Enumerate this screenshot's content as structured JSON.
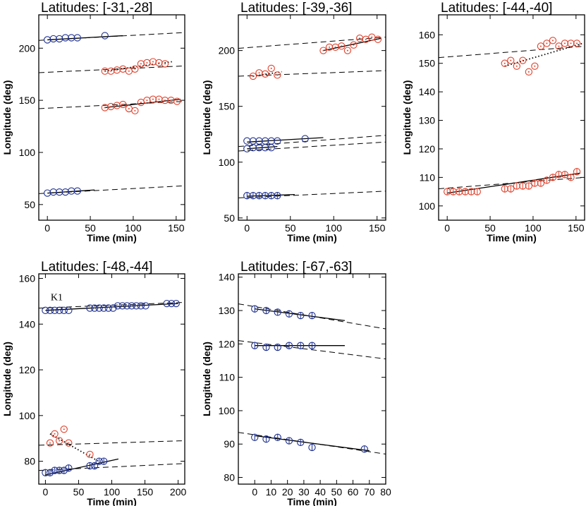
{
  "figure": {
    "colors": {
      "blue": "#1d2f8f",
      "red": "#e0402a",
      "axis": "#000000"
    }
  },
  "chart_data": [
    {
      "type": "scatter",
      "title": "Latitudes: [-31,-28]",
      "xlabel": "Time (min)",
      "ylabel": "Longitude (deg)",
      "xlim": [
        -10,
        160
      ],
      "ylim": [
        35,
        232
      ],
      "xticks": [
        0,
        50,
        100,
        150
      ],
      "yticks": [
        50,
        100,
        150,
        200
      ],
      "annotations": [],
      "series": [
        {
          "name": "track-1",
          "color": "blue",
          "symbol": "circle",
          "errorbars": false,
          "x": [
            0,
            7,
            14,
            21,
            28,
            35,
            67
          ],
          "y": [
            208,
            209,
            209,
            210,
            210,
            210,
            212
          ],
          "fit": {
            "x": [
              0,
              88
            ],
            "y": [
              208,
              212
            ],
            "style": "solid"
          },
          "trend": {
            "x": [
              -10,
              160
            ],
            "y": [
              207.5,
              215
            ],
            "style": "dashed"
          }
        },
        {
          "name": "track-2",
          "color": "red",
          "symbol": "dot-circle",
          "errorbars": false,
          "x": [
            67,
            74,
            81,
            88,
            95,
            102,
            109,
            116,
            123,
            130,
            137
          ],
          "y": [
            178,
            178,
            179,
            180,
            178,
            180,
            185,
            186,
            187,
            186,
            185
          ],
          "fit": {
            "x": [
              67,
              145
            ],
            "y": [
              178,
              187
            ],
            "style": "dotted"
          },
          "trend": {
            "x": [
              -10,
              160
            ],
            "y": [
              176.5,
              183
            ],
            "style": "dashed"
          }
        },
        {
          "name": "track-3",
          "color": "red",
          "symbol": "dot-circle",
          "errorbars": false,
          "x": [
            67,
            74,
            81,
            88,
            95,
            102,
            109,
            116,
            123,
            130,
            137,
            144,
            151
          ],
          "y": [
            143,
            144,
            145,
            146,
            142,
            140,
            148,
            150,
            151,
            151,
            150,
            150,
            149
          ],
          "fit": {
            "x": [
              67,
              155
            ],
            "y": [
              143,
              151
            ],
            "style": "solid"
          },
          "trend": {
            "x": [
              -10,
              160
            ],
            "y": [
              142,
              149
            ],
            "style": "dashed"
          }
        },
        {
          "name": "track-4",
          "color": "blue",
          "symbol": "circle",
          "errorbars": false,
          "x": [
            0,
            7,
            14,
            21,
            28,
            35
          ],
          "y": [
            61,
            62,
            62,
            62,
            63,
            63
          ],
          "fit": {
            "x": [
              0,
              55
            ],
            "y": [
              61,
              64
            ],
            "style": "solid"
          },
          "trend": {
            "x": [
              -10,
              160
            ],
            "y": [
              60.5,
              68
            ],
            "style": "dashed"
          }
        }
      ]
    },
    {
      "type": "scatter",
      "title": "Latitudes: [-39,-36]",
      "xlabel": "Time (min)",
      "ylabel": "Longitude (deg)",
      "xlim": [
        -10,
        160
      ],
      "ylim": [
        48,
        232
      ],
      "xticks": [
        0,
        50,
        100,
        150
      ],
      "yticks": [
        50,
        100,
        150,
        200
      ],
      "annotations": [],
      "series": [
        {
          "name": "track-1",
          "color": "red",
          "symbol": "dot-circle",
          "errorbars": false,
          "x": [
            88,
            95,
            102,
            109,
            116,
            123,
            130,
            137,
            144,
            151
          ],
          "y": [
            200,
            203,
            203,
            204,
            200,
            205,
            211,
            210,
            212,
            210
          ],
          "fit": {
            "x": [
              88,
              155
            ],
            "y": [
              200,
              211
            ],
            "style": "solid"
          },
          "trend": {
            "x": [
              -10,
              160
            ],
            "y": [
              202,
              212
            ],
            "style": "dashed"
          }
        },
        {
          "name": "track-2",
          "color": "red",
          "symbol": "dot-circle",
          "errorbars": false,
          "x": [
            7,
            14,
            21,
            28,
            35
          ],
          "y": [
            177,
            180,
            179,
            184,
            178
          ],
          "fit": {
            "x": [
              7,
              40
            ],
            "y": [
              177,
              181
            ],
            "style": "dotted"
          },
          "trend": {
            "x": [
              -10,
              160
            ],
            "y": [
              177,
              182
            ],
            "style": "dashed"
          }
        },
        {
          "name": "track-3",
          "color": "blue",
          "symbol": "circle",
          "errorbars": false,
          "x": [
            0,
            7,
            14,
            21,
            28,
            35,
            67
          ],
          "y": [
            119,
            119,
            119,
            119,
            119,
            119,
            121
          ],
          "fit": {
            "x": [
              0,
              88
            ],
            "y": [
              118,
              122
            ],
            "style": "solid"
          },
          "trend": {
            "x": [
              -10,
              160
            ],
            "y": [
              114,
              124
            ],
            "style": "dashed"
          }
        },
        {
          "name": "track-4",
          "color": "blue",
          "symbol": "circle",
          "errorbars": false,
          "x": [
            0,
            7,
            14,
            21,
            28
          ],
          "y": [
            112,
            113,
            113,
            113,
            113
          ],
          "fit": {
            "x": [
              0,
              35
            ],
            "y": [
              112,
              114
            ],
            "style": "solid"
          },
          "trend": {
            "x": [
              -10,
              160
            ],
            "y": [
              110,
              118
            ],
            "style": "dashed"
          }
        },
        {
          "name": "track-5",
          "color": "blue",
          "symbol": "circle",
          "errorbars": true,
          "x": [
            0,
            7,
            14,
            21,
            28,
            35
          ],
          "y": [
            70,
            70,
            70,
            70,
            70,
            70
          ],
          "fit": {
            "x": [
              0,
              55
            ],
            "y": [
              69.5,
              71
            ],
            "style": "solid"
          },
          "trend": {
            "x": [
              -10,
              160
            ],
            "y": [
              68,
              74
            ],
            "style": "dashed"
          }
        }
      ]
    },
    {
      "type": "scatter",
      "title": "Latitudes: [-44,-40]",
      "xlabel": "Time (min)",
      "ylabel": "Longitude (deg)",
      "xlim": [
        -10,
        160
      ],
      "ylim": [
        95,
        167
      ],
      "xticks": [
        0,
        50,
        100,
        150
      ],
      "yticks": [
        100,
        110,
        120,
        130,
        140,
        150,
        160
      ],
      "annotations": [],
      "series": [
        {
          "name": "track-1",
          "color": "red",
          "symbol": "dot-circle",
          "errorbars": false,
          "x": [
            67,
            74,
            81,
            88,
            95,
            102,
            109,
            116,
            123,
            130,
            137,
            144,
            151
          ],
          "y": [
            150,
            151,
            149,
            151,
            147,
            149,
            156,
            157,
            158,
            156,
            157,
            157,
            157
          ],
          "fit": {
            "x": [
              67,
              158
            ],
            "y": [
              149,
              157
            ],
            "style": "dotted"
          },
          "trend": {
            "x": [
              -10,
              160
            ],
            "y": [
              152,
              156
            ],
            "style": "dashed"
          }
        },
        {
          "name": "track-2",
          "color": "red",
          "symbol": "circle",
          "errorbars": true,
          "x": [
            0,
            7,
            14,
            21,
            28,
            35,
            67,
            74,
            81,
            88,
            95,
            102,
            109,
            116,
            123,
            130,
            137,
            144,
            151
          ],
          "y": [
            105,
            105,
            105,
            105,
            105,
            105,
            106,
            106,
            107,
            107,
            107,
            108,
            108,
            109,
            110,
            111,
            111,
            110,
            112
          ],
          "fit": {
            "x": [
              0,
              155
            ],
            "y": [
              104.5,
              111.5
            ],
            "style": "solid"
          },
          "trend": {
            "x": [
              -10,
              160
            ],
            "y": [
              106,
              110
            ],
            "style": "dashed"
          }
        }
      ]
    },
    {
      "type": "scatter",
      "title": "Latitudes: [-48,-44]",
      "xlabel": "Time (min)",
      "ylabel": "Longitude (deg)",
      "xlim": [
        -10,
        210
      ],
      "ylim": [
        70,
        162
      ],
      "xticks": [
        0,
        50,
        100,
        150,
        200
      ],
      "yticks": [
        80,
        100,
        120,
        140,
        160
      ],
      "annotations": [
        {
          "text": "K1",
          "x": 8,
          "y": 152
        }
      ],
      "series": [
        {
          "name": "track-1",
          "color": "blue",
          "symbol": "circle",
          "errorbars": false,
          "x": [
            0,
            7,
            14,
            21,
            28,
            35,
            67,
            74,
            81,
            88,
            95,
            102,
            109,
            116,
            123,
            130,
            137,
            144,
            151,
            183,
            190,
            197
          ],
          "y": [
            146,
            146,
            146,
            146,
            146,
            146,
            147,
            147,
            147,
            147,
            147,
            147,
            148,
            148,
            148,
            148,
            148,
            148,
            148,
            149,
            149,
            149
          ],
          "fit": {
            "x": [
              0,
              200
            ],
            "y": [
              146,
              149
            ],
            "style": "solid"
          },
          "trend": {
            "x": [
              -10,
              210
            ],
            "y": [
              147,
              149.5
            ],
            "style": "dashed"
          }
        },
        {
          "name": "track-2",
          "color": "red",
          "symbol": "dot-circle",
          "errorbars": false,
          "x": [
            7,
            14,
            21,
            28,
            35,
            67
          ],
          "y": [
            88,
            92,
            89,
            94,
            88,
            83
          ],
          "fit": {
            "x": [
              7,
              80
            ],
            "y": [
              92,
              80
            ],
            "style": "dotted"
          },
          "trend": {
            "x": [
              -10,
              210
            ],
            "y": [
              87,
              89
            ],
            "style": "dashed"
          }
        },
        {
          "name": "track-3",
          "color": "blue",
          "symbol": "circle",
          "errorbars": true,
          "x": [
            0,
            7,
            14,
            21,
            28,
            35,
            67,
            74,
            81,
            88
          ],
          "y": [
            75,
            75,
            76,
            76,
            76,
            77,
            78,
            78,
            80,
            80
          ],
          "fit": {
            "x": [
              0,
              110
            ],
            "y": [
              74,
              81
            ],
            "style": "solid"
          },
          "trend": {
            "x": [
              -10,
              210
            ],
            "y": [
              76,
              79
            ],
            "style": "dashed"
          }
        }
      ]
    },
    {
      "type": "scatter",
      "title": "Latitudes: [-67,-63]",
      "xlabel": "Time (min)",
      "ylabel": "Longitude (deg)",
      "xlim": [
        -10,
        80
      ],
      "ylim": [
        78,
        141
      ],
      "xticks": [
        0,
        10,
        20,
        30,
        40,
        50,
        60,
        70,
        80
      ],
      "yticks": [
        80,
        90,
        100,
        110,
        120,
        130,
        140
      ],
      "annotations": [],
      "series": [
        {
          "name": "track-1",
          "color": "blue",
          "symbol": "circle",
          "errorbars": true,
          "x": [
            0,
            7,
            14,
            21,
            28,
            35
          ],
          "y": [
            130.5,
            130,
            129.5,
            129,
            128.5,
            128.5
          ],
          "fit": {
            "x": [
              0,
              55
            ],
            "y": [
              130.5,
              127
            ],
            "style": "solid"
          },
          "trend": {
            "x": [
              -10,
              80
            ],
            "y": [
              132,
              124.5
            ],
            "style": "dashed"
          }
        },
        {
          "name": "track-2",
          "color": "blue",
          "symbol": "circle",
          "errorbars": true,
          "x": [
            0,
            7,
            14,
            21,
            28,
            35
          ],
          "y": [
            119.5,
            119,
            119,
            119.5,
            119.5,
            119.5
          ],
          "fit": {
            "x": [
              0,
              55
            ],
            "y": [
              119.5,
              119.5
            ],
            "style": "solid"
          },
          "trend": {
            "x": [
              -10,
              80
            ],
            "y": [
              121,
              115.5
            ],
            "style": "dashed"
          }
        },
        {
          "name": "track-3",
          "color": "blue",
          "symbol": "circle",
          "errorbars": true,
          "x": [
            0,
            7,
            14,
            21,
            28,
            35,
            67
          ],
          "y": [
            92,
            91.5,
            92,
            91,
            90.5,
            89,
            88.5
          ],
          "fit": {
            "x": [
              0,
              70
            ],
            "y": [
              92.5,
              88
            ],
            "style": "solid"
          },
          "trend": {
            "x": [
              -10,
              80
            ],
            "y": [
              93.5,
              87
            ],
            "style": "dashed"
          }
        }
      ]
    }
  ]
}
